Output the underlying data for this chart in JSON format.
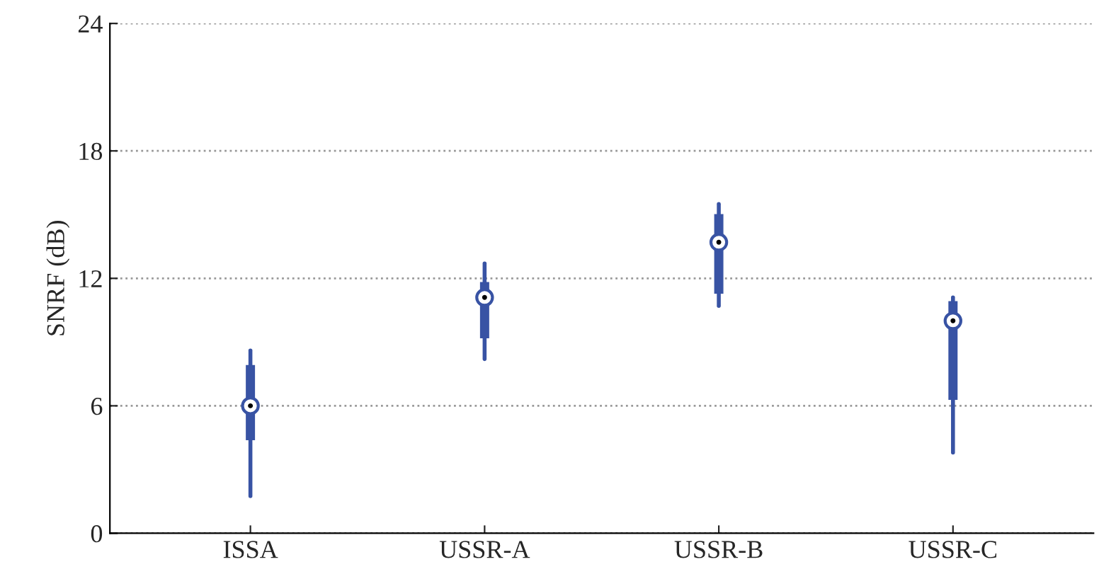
{
  "chart_data": {
    "type": "box",
    "ylabel": "SNRF (dB)",
    "categories": [
      "ISSA",
      "USSR-A",
      "USSR-B",
      "USSR-C"
    ],
    "boxes": [
      {
        "low": 1.75,
        "q1": 4.4,
        "median": 6.0,
        "q3": 7.9,
        "high": 8.6
      },
      {
        "low": 8.2,
        "q1": 9.2,
        "median": 11.1,
        "q3": 11.8,
        "high": 12.7
      },
      {
        "low": 10.7,
        "q1": 11.3,
        "median": 13.7,
        "q3": 15.0,
        "high": 15.5
      },
      {
        "low": 3.8,
        "q1": 6.3,
        "median": 10.0,
        "q3": 10.9,
        "high": 11.1
      }
    ],
    "color": "#3853a4",
    "ylim": [
      0,
      24
    ],
    "yticks": [
      0,
      6,
      12,
      18,
      24
    ],
    "grid": "y"
  }
}
